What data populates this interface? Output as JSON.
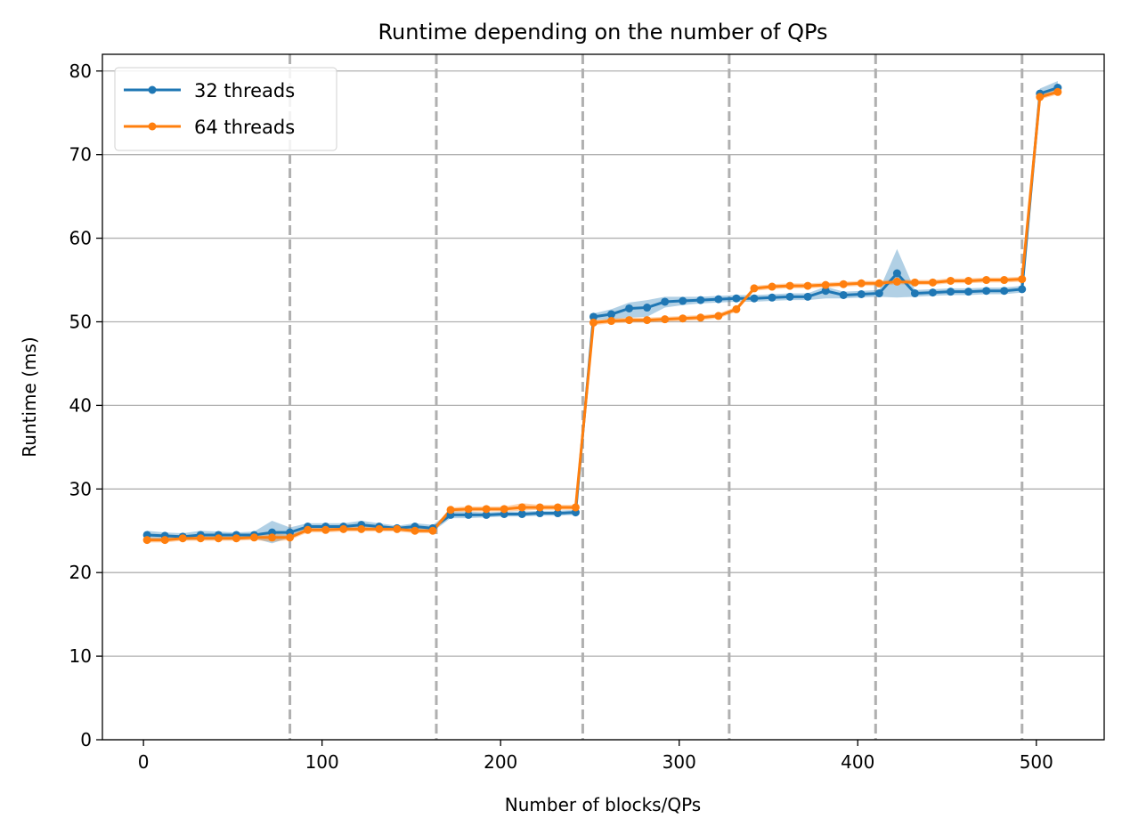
{
  "chart_data": {
    "type": "line",
    "title": "Runtime depending on the number of QPs",
    "xlabel": "Number of blocks/QPs",
    "ylabel": "Runtime (ms)",
    "xlim": [
      -23,
      538
    ],
    "ylim": [
      0,
      82
    ],
    "xticks": [
      0,
      100,
      200,
      300,
      400,
      500
    ],
    "yticks": [
      0,
      10,
      20,
      30,
      40,
      50,
      60,
      70,
      80
    ],
    "grid": "horizontal",
    "vlines": [
      82,
      164,
      246,
      328,
      410,
      492
    ],
    "vline_color": "#b0b0b0",
    "legend_position": "top-left",
    "x": [
      2,
      12,
      22,
      32,
      42,
      52,
      62,
      72,
      82,
      92,
      102,
      112,
      122,
      132,
      142,
      152,
      162,
      172,
      182,
      192,
      202,
      212,
      222,
      232,
      242,
      252,
      262,
      272,
      282,
      292,
      302,
      312,
      322,
      332,
      342,
      352,
      362,
      372,
      382,
      392,
      402,
      412,
      422,
      432,
      442,
      452,
      462,
      472,
      482,
      492,
      502,
      512
    ],
    "series": [
      {
        "name": "32 threads",
        "color": "#1f77b4",
        "values": [
          24.5,
          24.4,
          24.3,
          24.5,
          24.5,
          24.5,
          24.5,
          24.8,
          24.8,
          25.5,
          25.5,
          25.5,
          25.7,
          25.5,
          25.3,
          25.5,
          25.3,
          26.9,
          26.9,
          26.9,
          27.0,
          27.0,
          27.1,
          27.1,
          27.2,
          50.6,
          50.9,
          51.6,
          51.7,
          52.4,
          52.5,
          52.6,
          52.7,
          52.8,
          52.8,
          52.9,
          53.0,
          53.0,
          53.7,
          53.2,
          53.3,
          53.4,
          55.8,
          53.4,
          53.5,
          53.6,
          53.6,
          53.7,
          53.7,
          53.9,
          77.3,
          78.0
        ],
        "lower": [
          24.0,
          24.0,
          23.9,
          24.0,
          24.1,
          24.2,
          24.1,
          23.5,
          24.2,
          25.1,
          25.1,
          25.1,
          25.2,
          25.1,
          25.0,
          25.1,
          24.9,
          26.5,
          26.5,
          26.6,
          26.7,
          26.7,
          26.8,
          26.8,
          26.9,
          50.2,
          50.3,
          50.5,
          50.6,
          51.7,
          52.0,
          52.2,
          52.3,
          52.4,
          52.4,
          52.5,
          52.6,
          52.6,
          52.8,
          52.8,
          52.9,
          53.0,
          52.9,
          53.0,
          53.1,
          53.2,
          53.2,
          53.3,
          53.3,
          53.5,
          76.7,
          77.4
        ],
        "upper": [
          25.0,
          24.8,
          24.7,
          25.0,
          24.9,
          24.8,
          24.9,
          26.2,
          25.4,
          25.9,
          25.9,
          25.9,
          26.2,
          25.9,
          25.6,
          25.9,
          25.7,
          27.3,
          27.3,
          27.2,
          27.3,
          27.3,
          27.4,
          27.4,
          27.5,
          51.0,
          51.5,
          52.3,
          52.6,
          53.0,
          53.0,
          53.0,
          53.1,
          53.2,
          53.2,
          53.3,
          53.4,
          53.4,
          54.2,
          53.6,
          53.7,
          53.8,
          58.7,
          53.8,
          53.9,
          54.0,
          54.0,
          54.1,
          54.1,
          54.3,
          77.9,
          78.8
        ]
      },
      {
        "name": "64 threads",
        "color": "#ff7f0e",
        "values": [
          23.9,
          23.9,
          24.1,
          24.1,
          24.1,
          24.1,
          24.2,
          24.2,
          24.2,
          25.1,
          25.1,
          25.2,
          25.2,
          25.2,
          25.2,
          25.0,
          25.0,
          27.5,
          27.6,
          27.6,
          27.6,
          27.8,
          27.8,
          27.8,
          27.8,
          49.9,
          50.1,
          50.2,
          50.2,
          50.3,
          50.4,
          50.5,
          50.7,
          51.5,
          54.0,
          54.2,
          54.3,
          54.3,
          54.4,
          54.5,
          54.6,
          54.6,
          54.8,
          54.7,
          54.7,
          54.9,
          54.9,
          55.0,
          55.0,
          55.1,
          76.9,
          77.5
        ],
        "lower": [
          23.6,
          23.6,
          23.8,
          23.8,
          23.8,
          23.8,
          23.9,
          23.7,
          23.9,
          24.8,
          24.8,
          24.9,
          24.9,
          24.9,
          24.9,
          24.7,
          24.7,
          27.2,
          27.3,
          27.3,
          27.3,
          27.4,
          27.5,
          27.5,
          27.5,
          49.6,
          49.8,
          49.9,
          49.9,
          50.0,
          50.1,
          50.2,
          50.4,
          51.2,
          53.7,
          53.9,
          54.0,
          54.0,
          54.1,
          54.2,
          54.3,
          54.3,
          54.5,
          54.4,
          54.4,
          54.6,
          54.6,
          54.7,
          54.7,
          54.8,
          76.6,
          77.2
        ],
        "upper": [
          24.2,
          24.2,
          24.4,
          24.4,
          24.4,
          24.4,
          24.5,
          24.7,
          24.5,
          25.4,
          25.4,
          25.5,
          25.5,
          25.5,
          25.5,
          25.3,
          25.3,
          27.8,
          27.9,
          27.9,
          27.9,
          28.3,
          28.1,
          28.1,
          28.1,
          50.2,
          50.4,
          50.5,
          50.5,
          50.6,
          50.7,
          50.8,
          51.0,
          51.8,
          54.3,
          54.5,
          54.6,
          54.6,
          54.7,
          54.8,
          54.9,
          54.9,
          55.1,
          55.0,
          55.0,
          55.2,
          55.2,
          55.3,
          55.3,
          55.4,
          77.2,
          77.8
        ]
      }
    ]
  }
}
